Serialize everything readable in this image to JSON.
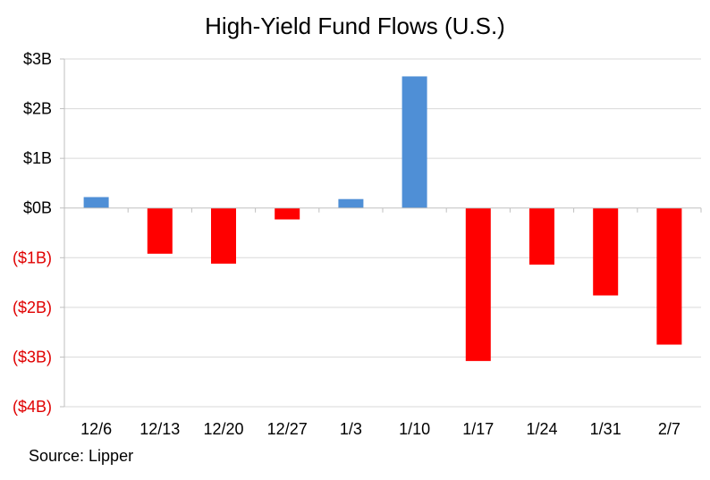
{
  "chart_data": {
    "type": "bar",
    "title": "High-Yield Fund Flows (U.S.)",
    "source": "Source: Lipper",
    "categories": [
      "12/6",
      "12/13",
      "12/20",
      "12/27",
      "1/3",
      "1/10",
      "1/17",
      "1/24",
      "1/31",
      "2/7"
    ],
    "values": [
      0.22,
      -0.92,
      -1.12,
      -0.23,
      0.18,
      2.65,
      -3.08,
      -1.14,
      -1.76,
      -2.75
    ],
    "unit": "$B",
    "ylim": [
      -4,
      3
    ],
    "yticks": [
      {
        "value": 3,
        "label": "$3B"
      },
      {
        "value": 2,
        "label": "$2B"
      },
      {
        "value": 1,
        "label": "$1B"
      },
      {
        "value": 0,
        "label": "$0B"
      },
      {
        "value": -1,
        "label": "($1B)"
      },
      {
        "value": -2,
        "label": "($2B)"
      },
      {
        "value": -3,
        "label": "($3B)"
      },
      {
        "value": -4,
        "label": "($4B)"
      }
    ],
    "grid": true,
    "colors": {
      "positive": "#4f8fd6",
      "negative": "#ff0000",
      "negative_label": "#e00000",
      "positive_label": "#000000",
      "grid": "#d9d9d9",
      "axis": "#bfbfbf"
    }
  }
}
